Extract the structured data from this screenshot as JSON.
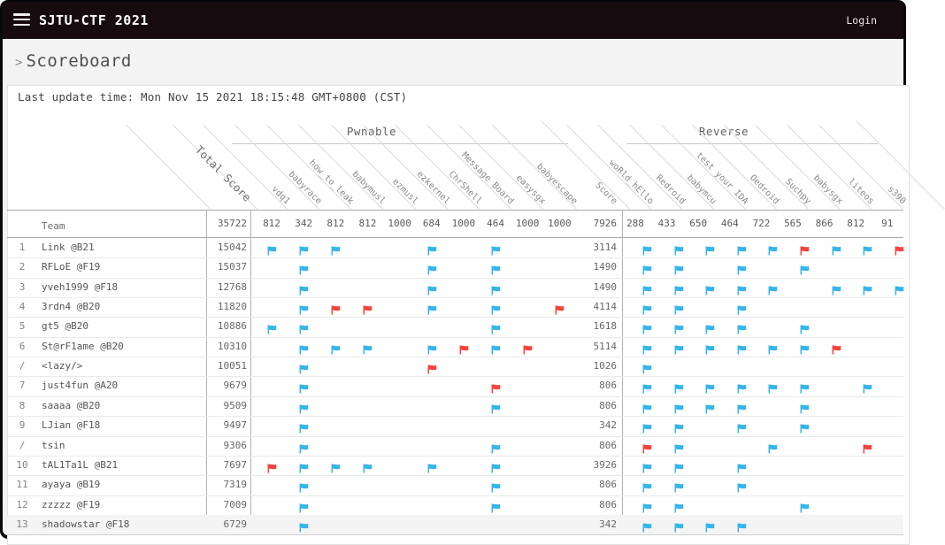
{
  "header": {
    "title": "SJTU-CTF 2021",
    "login_label": "Login"
  },
  "breadcrumb": {
    "chevron": ">",
    "label": "Scoreboard"
  },
  "last_update": "Last update time: Mon Nov 15 2021 18:15:48 GMT+0800 (CST)",
  "colors": {
    "solved_flag": "#35b5ea",
    "firstblood_flag": "#f8433d",
    "topbar_bg": "#170b10",
    "page_bg": "#f3f3f3"
  },
  "scoreboard": {
    "team_column_label": "Team",
    "total_score_label": "Total Score",
    "total_points": "35722",
    "categories": [
      {
        "name": "Pwnable",
        "challenges": [
          {
            "name": "vdq1",
            "points": "812"
          },
          {
            "name": "babyrace",
            "points": "342"
          },
          {
            "name": "how_to_leak",
            "points": "812"
          },
          {
            "name": "babymusl",
            "points": "812"
          },
          {
            "name": "ezmusl",
            "points": "1000"
          },
          {
            "name": "ezkernel",
            "points": "684"
          },
          {
            "name": "ChrShell",
            "points": "1000"
          },
          {
            "name": "Message Board",
            "points": "464"
          },
          {
            "name": "easysgx",
            "points": "1000"
          },
          {
            "name": "babyescape",
            "points": "1000"
          }
        ],
        "score_label": "Score",
        "score_points": "7926"
      },
      {
        "name": "Reverse",
        "challenges": [
          {
            "name": "woRld_hEllo",
            "points": "288"
          },
          {
            "name": "Redroid",
            "points": "433"
          },
          {
            "name": "babymcu",
            "points": "650"
          },
          {
            "name": "test your IDA",
            "points": "464"
          },
          {
            "name": "Oedroid",
            "points": "722"
          },
          {
            "name": "Suchpy",
            "points": "565"
          },
          {
            "name": "babysgx",
            "points": "866"
          },
          {
            "name": "liteos",
            "points": "812"
          },
          {
            "name": "s390",
            "points": "91"
          }
        ]
      }
    ],
    "teams": [
      {
        "rank": "1",
        "name": "Link @B21",
        "total": "15042",
        "pwn": "ccc..c.c..",
        "pwn_score": "3114",
        "rev": "cccccrccr"
      },
      {
        "rank": "2",
        "name": "RFLoE @F19",
        "total": "15037",
        "pwn": ".c...c.c..",
        "pwn_score": "1490",
        "rev": "cc.c.c..."
      },
      {
        "rank": "3",
        "name": "yveh1999 @F18",
        "total": "12768",
        "pwn": ".c...c.c..",
        "pwn_score": "1490",
        "rev": "ccccc.ccc"
      },
      {
        "rank": "4",
        "name": "3rdn4 @B20",
        "total": "11820",
        "pwn": ".crr.c.c.r",
        "pwn_score": "4114",
        "rev": "cc.c....."
      },
      {
        "rank": "5",
        "name": "gt5 @B20",
        "total": "10886",
        "pwn": "cc.....c..",
        "pwn_score": "1618",
        "rev": "cccc.c..."
      },
      {
        "rank": "6",
        "name": "St@rF1ame @B20",
        "total": "10310",
        "pwn": ".ccc.crcr.",
        "pwn_score": "5114",
        "rev": "ccccccr.."
      },
      {
        "rank": "/",
        "name": "<lazy/>",
        "total": "10051",
        "pwn": ".c...r....",
        "pwn_score": "1026",
        "rev": "c........"
      },
      {
        "rank": "7",
        "name": "just4fun @A20",
        "total": "9679",
        "pwn": ".c.....r..",
        "pwn_score": "806",
        "rev": "cccccc.c."
      },
      {
        "rank": "8",
        "name": "saaaa @B20",
        "total": "9509",
        "pwn": ".c.....c..",
        "pwn_score": "806",
        "rev": "cccc.c..."
      },
      {
        "rank": "9",
        "name": "LJian @F18",
        "total": "9497",
        "pwn": ".c........",
        "pwn_score": "342",
        "rev": "cc.c.c..."
      },
      {
        "rank": "/",
        "name": "tsin",
        "total": "9306",
        "pwn": ".c.....c..",
        "pwn_score": "806",
        "rev": "rc..c..r."
      },
      {
        "rank": "10",
        "name": "tAL1Ta1L @B21",
        "total": "7697",
        "pwn": "rccc.c.c..",
        "pwn_score": "3926",
        "rev": "cc.c....."
      },
      {
        "rank": "11",
        "name": "ayaya @B19",
        "total": "7319",
        "pwn": ".c.....c..",
        "pwn_score": "806",
        "rev": "cc.c....."
      },
      {
        "rank": "12",
        "name": "zzzzz @F19",
        "total": "7009",
        "pwn": ".c.....c..",
        "pwn_score": "806",
        "rev": "cc...c..."
      },
      {
        "rank": "13",
        "name": "shadowstar @F18",
        "total": "6729",
        "pwn": ".c........",
        "pwn_score": "342",
        "rev": "cccc....."
      }
    ]
  }
}
